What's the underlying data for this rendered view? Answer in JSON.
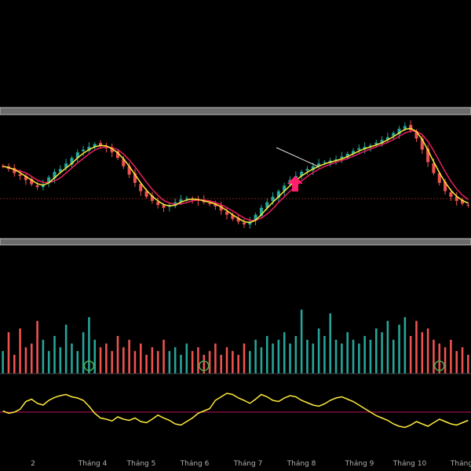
{
  "chart_data": {
    "type": "candlestick",
    "x_tick_labels": [
      "2",
      "Tháng 4",
      "Tháng 5",
      "Tháng 6",
      "Tháng 7",
      "Tháng 8",
      "Tháng 9",
      "Tháng 10",
      "Tháng"
    ],
    "colors": {
      "up": "#26a69a",
      "down": "#ef5350",
      "ma_fast": "#ffeb3b",
      "ma_slow": "#e91e63",
      "arrow": "#ff1f6b",
      "band": "#bdbdbd",
      "oscillator": "#ffeb3b",
      "oscillator_baseline": "#c2185b",
      "marker_circle": "#4caf50"
    },
    "price_close": [
      60,
      58,
      55,
      53,
      50,
      47,
      45,
      47,
      52,
      56,
      58,
      62,
      66,
      70,
      72,
      74,
      76,
      75,
      73,
      70,
      66,
      60,
      54,
      48,
      42,
      38,
      35,
      32,
      30,
      32,
      34,
      36,
      37,
      36,
      35,
      34,
      33,
      31,
      28,
      25,
      22,
      20,
      18,
      20,
      25,
      30,
      34,
      38,
      42,
      46,
      50,
      53,
      56,
      58,
      60,
      62,
      63,
      64,
      65,
      67,
      69,
      71,
      73,
      74,
      75,
      77,
      79,
      81,
      84,
      87,
      89,
      86,
      80,
      72,
      63,
      55,
      48,
      42,
      38,
      35,
      33,
      32
    ],
    "volume": [
      30,
      55,
      25,
      60,
      35,
      40,
      70,
      45,
      30,
      50,
      35,
      65,
      40,
      30,
      55,
      75,
      45,
      35,
      40,
      30,
      50,
      35,
      45,
      30,
      40,
      25,
      35,
      30,
      45,
      30,
      35,
      25,
      40,
      30,
      35,
      25,
      30,
      40,
      25,
      35,
      30,
      25,
      40,
      30,
      45,
      35,
      50,
      40,
      45,
      55,
      40,
      50,
      85,
      45,
      40,
      60,
      50,
      80,
      45,
      40,
      55,
      45,
      40,
      50,
      45,
      60,
      55,
      70,
      45,
      65,
      75,
      50,
      70,
      55,
      60,
      45,
      40,
      35,
      45,
      30,
      35,
      25
    ],
    "volume_marker_bars": [
      15,
      35,
      76
    ],
    "oscillator": [
      62,
      58,
      60,
      65,
      78,
      82,
      75,
      72,
      80,
      85,
      88,
      90,
      86,
      84,
      80,
      70,
      58,
      50,
      48,
      45,
      52,
      48,
      46,
      50,
      44,
      42,
      48,
      55,
      50,
      46,
      40,
      38,
      44,
      50,
      58,
      62,
      66,
      80,
      86,
      92,
      90,
      84,
      80,
      75,
      82,
      90,
      86,
      80,
      78,
      84,
      88,
      86,
      80,
      76,
      72,
      70,
      74,
      80,
      84,
      86,
      82,
      78,
      72,
      66,
      60,
      54,
      50,
      46,
      40,
      36,
      34,
      38,
      44,
      40,
      36,
      42,
      48,
      44,
      40,
      38,
      42,
      46
    ],
    "oscillator_baseline": 60
  }
}
